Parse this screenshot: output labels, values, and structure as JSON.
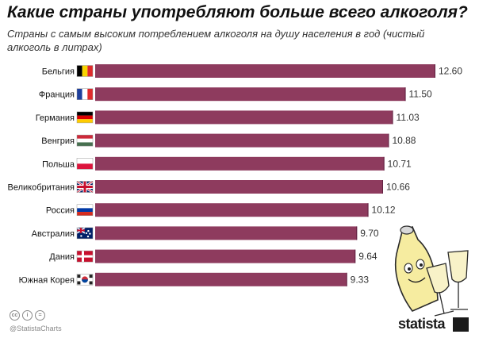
{
  "title": "Какие страны употребляют больше всего алкоголя?",
  "subtitle": "Страны с самым высоким потреблением алкоголя на душу населения в год (чистый алкоголь в литрах)",
  "chart_data": {
    "type": "bar",
    "orientation": "horizontal",
    "title": "Какие страны употребляют больше всего алкоголя?",
    "subtitle": "Страны с самым высоким потреблением алкоголя на душу населения в год (чистый алкоголь в литрах)",
    "categories": [
      "Бельгия",
      "Франция",
      "Германия",
      "Венгрия",
      "Польша",
      "Великобритания",
      "Россия",
      "Австралия",
      "Дания",
      "Южная Корея"
    ],
    "values": [
      12.6,
      11.5,
      11.03,
      10.88,
      10.71,
      10.66,
      10.12,
      9.7,
      9.64,
      9.33
    ],
    "value_labels": [
      "12.60",
      "11.50",
      "11.03",
      "10.88",
      "10.71",
      "10.66",
      "10.12",
      "9.70",
      "9.64",
      "9.33"
    ],
    "flags": [
      "belgium",
      "france",
      "germany",
      "hungary",
      "poland",
      "uk",
      "russia",
      "australia",
      "denmark",
      "south-korea"
    ],
    "xlim": [
      0,
      12.6
    ],
    "grid": false,
    "legend": "none",
    "bar_color": "#8e3b5e"
  },
  "footer": {
    "cc_icons": [
      "cc",
      "i",
      "="
    ],
    "handle": "@StatistaCharts",
    "brand": "statista"
  }
}
